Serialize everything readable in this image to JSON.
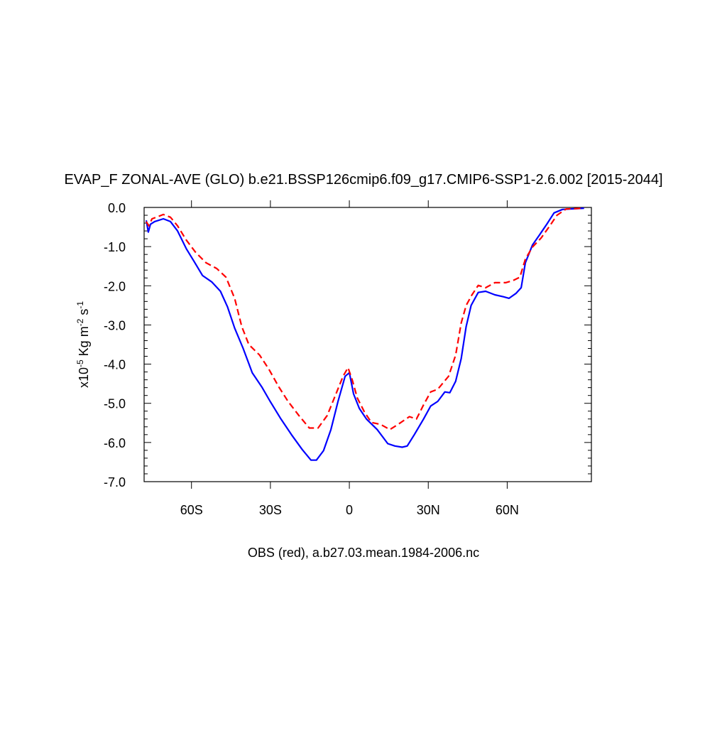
{
  "chart_data": {
    "type": "line",
    "title": "EVAP_F ZONAL-AVE (GLO) b.e21.BSSP126cmip6.f09_g17.CMIP6-SSP1-2.6.002 [2015-2044]",
    "xlabel": "OBS (red), a.b27.03.mean.1984-2006.nc",
    "ylabel_parts": [
      {
        "text": "x10",
        "sup": false
      },
      {
        "text": "-5",
        "sup": true
      },
      {
        "text": " Kg m",
        "sup": false
      },
      {
        "text": "-2",
        "sup": true
      },
      {
        "text": " s",
        "sup": false
      },
      {
        "text": "-1",
        "sup": true
      }
    ],
    "xlim": [
      -78,
      92
    ],
    "ylim": [
      -7,
      0
    ],
    "xticks": [
      {
        "value": -60,
        "label": "60S"
      },
      {
        "value": -30,
        "label": "30S"
      },
      0,
      {
        "value": 30,
        "label": "30N"
      },
      {
        "value": 60,
        "label": "60N"
      }
    ],
    "yticks": [
      {
        "value": -7,
        "label": "-7.0"
      },
      {
        "value": -6,
        "label": "-6.0"
      },
      {
        "value": -5,
        "label": "-5.0"
      },
      {
        "value": -4,
        "label": "-4.0"
      },
      {
        "value": -3,
        "label": "-3.0"
      },
      {
        "value": -2,
        "label": "-2.0"
      },
      {
        "value": -1,
        "label": "-1.0"
      },
      {
        "value": 0,
        "label": "0.0"
      }
    ],
    "grid": false,
    "series": [
      {
        "color": "#0000ff",
        "dash": false,
        "x": [
          -77.2,
          -76.4,
          -75.6,
          -74,
          -70.7,
          -68,
          -65.3,
          -62,
          -59,
          -55.8,
          -52.3,
          -49,
          -46.3,
          -43.6,
          -40.4,
          -36.9,
          -33.3,
          -30.1,
          -26,
          -22,
          -17.9,
          -14.6,
          -12.5,
          -9.8,
          -7,
          -4.3,
          -1.6,
          0,
          1.6,
          3.8,
          6.5,
          10.6,
          14.6,
          17.3,
          20.1,
          22,
          24.7,
          28.2,
          30.9,
          33.6,
          36.3,
          38.2,
          40.4,
          42.5,
          44.4,
          46.3,
          49,
          51.8,
          55.3,
          58.5,
          60.7,
          63.4,
          65.3,
          66.9,
          69.6,
          72.4,
          75.1,
          77.8,
          81,
          83.7,
          89.2
        ],
        "values": [
          -0.33,
          -0.63,
          -0.43,
          -0.36,
          -0.29,
          -0.36,
          -0.6,
          -1.05,
          -1.38,
          -1.74,
          -1.9,
          -2.14,
          -2.54,
          -3.08,
          -3.59,
          -4.22,
          -4.58,
          -4.95,
          -5.4,
          -5.8,
          -6.18,
          -6.45,
          -6.45,
          -6.21,
          -5.67,
          -4.95,
          -4.31,
          -4.22,
          -4.76,
          -5.13,
          -5.4,
          -5.67,
          -6.03,
          -6.09,
          -6.12,
          -6.09,
          -5.8,
          -5.4,
          -5.07,
          -4.95,
          -4.71,
          -4.73,
          -4.44,
          -3.86,
          -3.04,
          -2.5,
          -2.17,
          -2.14,
          -2.23,
          -2.28,
          -2.32,
          -2.19,
          -2.05,
          -1.41,
          -0.96,
          -0.69,
          -0.42,
          -0.14,
          -0.05,
          -0.04,
          -0.02
        ]
      },
      {
        "color": "#ff0000",
        "dash": true,
        "x": [
          -77.2,
          -76.2,
          -75,
          -72.9,
          -70.7,
          -68,
          -65.3,
          -62,
          -58.5,
          -54.5,
          -50.4,
          -46.9,
          -43.6,
          -40.9,
          -38.2,
          -34.1,
          -30.6,
          -26.8,
          -23.3,
          -19.2,
          -15.2,
          -11.9,
          -8.4,
          -5.1,
          -2.4,
          -0.5,
          1.1,
          3,
          5.7,
          8.4,
          11.9,
          15.4,
          18.7,
          22.8,
          25.5,
          28.2,
          30.9,
          33.6,
          37.7,
          40.4,
          42.5,
          44.4,
          46.6,
          49,
          51.8,
          55.3,
          59.4,
          62.1,
          64.8,
          66.9,
          69.6,
          72.9,
          76.2,
          78.9,
          82.4,
          89.2
        ],
        "values": [
          -0.36,
          -0.47,
          -0.29,
          -0.24,
          -0.18,
          -0.25,
          -0.47,
          -0.83,
          -1.14,
          -1.41,
          -1.56,
          -1.78,
          -2.32,
          -3.04,
          -3.5,
          -3.77,
          -4.13,
          -4.58,
          -4.95,
          -5.31,
          -5.63,
          -5.63,
          -5.31,
          -4.76,
          -4.31,
          -4.09,
          -4.4,
          -4.86,
          -5.22,
          -5.49,
          -5.54,
          -5.67,
          -5.53,
          -5.34,
          -5.4,
          -5.04,
          -4.71,
          -4.64,
          -4.31,
          -3.77,
          -2.95,
          -2.5,
          -2.23,
          -1.99,
          -2.05,
          -1.92,
          -1.92,
          -1.87,
          -1.78,
          -1.32,
          -1.01,
          -0.78,
          -0.47,
          -0.2,
          -0.04,
          -0.02
        ]
      }
    ]
  }
}
